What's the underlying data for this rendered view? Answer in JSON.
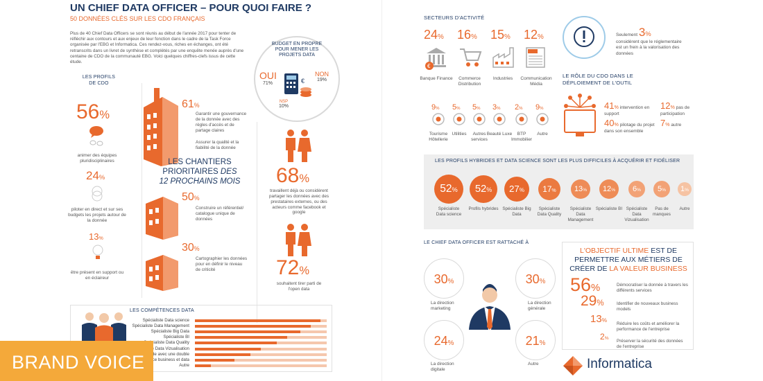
{
  "header": {
    "title": "UN CHIEF DATA OFFICER – POUR QUOI FAIRE ?",
    "subtitle": "50 DONNÉES CLÉS SUR LES CDO FRANÇAIS",
    "intro": "Plus de 40 Chief Data Officers se sont réunis au début de l'année 2017 pour tenter de réfléchir aux contours et aux enjeux de leur fonction dans le cadre de la Task Force organisée par l'EBG et Informatica. Ces rendez-vous, riches en échanges, ont été retranscrits dans un livret de synthèse et complétés par une enquête menée auprès d'une centaine de CDO de la communauté EBG. Voici quelques chiffres-clefs issus de cette étude."
  },
  "profils": {
    "heading": "LES PROFILS DE CDO",
    "items": [
      {
        "value": "56",
        "unit": "%",
        "label": "animer des équipes pluridisciplinaires"
      },
      {
        "value": "24",
        "unit": "%",
        "label": "piloter en direct et sur ses budgets les projets autour de la donnée"
      },
      {
        "value": "13",
        "unit": "%",
        "label": "être présent en support ou en éclaireur"
      }
    ]
  },
  "chantiers": {
    "heading_line1": "LES CHANTIERS",
    "heading_line2": "PRIORITAIRES",
    "heading_des": "DES",
    "heading_line3": "12 PROCHAINS MOIS",
    "items": [
      {
        "value": "61",
        "unit": "%",
        "label": "Garantir une gouvernance de la donnée avec des règles d'accès et de partage claires",
        "label2": "Assurer la qualité et la fiabilité de la donnée"
      },
      {
        "value": "50",
        "unit": "%",
        "label": "Construire un référentiel/ catalogue unique de données"
      },
      {
        "value": "30",
        "unit": "%",
        "label": "Cartographier les données pour en définir le niveau de criticité"
      }
    ]
  },
  "budget": {
    "title": "BUDGET EN PROPRE POUR MENER LES PROJETS DATA",
    "oui_label": "OUI",
    "oui_value": "71",
    "oui_unit": "%",
    "non_label": "NON",
    "non_value": "19",
    "non_unit": "%",
    "nsp_label": "NSP",
    "nsp_value": "10",
    "nsp_unit": "%"
  },
  "middle_stats": [
    {
      "value": "68",
      "unit": "%",
      "label": "travaillent déjà ou considèrent partager les données avec des prestataires externes, ou des acteurs comme facebook et google"
    },
    {
      "value": "72",
      "unit": "%",
      "label": "souhaitent tirer parti de l'open data"
    }
  ],
  "competences": {
    "heading": "LES COMPÉTENCES DATA",
    "items": [
      {
        "label": "Spécialiste Data science",
        "value": 0.95
      },
      {
        "label": "Spécialiste Data Management",
        "value": 0.88
      },
      {
        "label": "Spécialiste Big Data",
        "value": 0.8
      },
      {
        "label": "Spécialiste BI",
        "value": 0.7
      },
      {
        "label": "Spécialiste Data Quality",
        "value": 0.62
      },
      {
        "label": "Spécialiste Data Vizualisation",
        "value": 0.5
      },
      {
        "label": "Profil hybride avec une double",
        "value": 0.42
      },
      {
        "label": "compétence business et data",
        "value": 0.3
      },
      {
        "label": "Autre",
        "value": 0.12
      }
    ]
  },
  "brand_voice": "BRAND VOICE",
  "secteurs": {
    "heading": "SECTEURS D'ACTIVITÉ",
    "top": [
      {
        "value": "24",
        "unit": "%",
        "label": "Banque Finance",
        "icon": "bank-icon"
      },
      {
        "value": "16",
        "unit": "%",
        "label": "Commerce Distribution",
        "icon": "cart-icon"
      },
      {
        "value": "15",
        "unit": "%",
        "label": "Industries",
        "icon": "factory-icon"
      },
      {
        "value": "12",
        "unit": "%",
        "label": "Communication Média",
        "icon": "news-icon"
      }
    ],
    "bottom": [
      {
        "value": "9",
        "unit": "%",
        "label": "Tourisme Hôtellerie",
        "icon": "hotel-icon"
      },
      {
        "value": "5",
        "unit": "%",
        "label": "Utilities",
        "icon": "bulb-icon"
      },
      {
        "value": "5",
        "unit": "%",
        "label": "Autres services",
        "icon": "service-icon"
      },
      {
        "value": "3",
        "unit": "%",
        "label": "Beauté Luxe",
        "icon": "beauty-icon"
      },
      {
        "value": "2",
        "unit": "%",
        "label": "BTP Immobilier",
        "icon": "building-icon"
      },
      {
        "value": "9",
        "unit": "%",
        "label": "Autre",
        "icon": "dots-icon"
      }
    ]
  },
  "reglementaire": {
    "prefix": "Seulement",
    "value": "3",
    "unit": "%",
    "label": "considèrent que le réglementaire est un frein à la valorisation des données"
  },
  "role": {
    "heading": "LE RÔLE DU CDO DANS LE DÉPLOIEMENT DE L'OUTIL",
    "items": [
      {
        "value": "41",
        "unit": "%",
        "label": "intervention en support"
      },
      {
        "value": "12",
        "unit": "%",
        "label": "pas de participation"
      },
      {
        "value": "40",
        "unit": "%",
        "label": "pilotage du projet dans son ensemble"
      },
      {
        "value": "7",
        "unit": "%",
        "label": "autre"
      }
    ]
  },
  "profils_hybrides": {
    "heading": "LES PROFILS HYBRIDES ET DATA SCIENCE SONT LES PLUS DIFFICILES À ACQUÉRIR ET FIDÉLISER",
    "items": [
      {
        "value": "52",
        "unit": "%",
        "label": "Spécialiste Data science"
      },
      {
        "value": "52",
        "unit": "%",
        "label": "Profils hybrides"
      },
      {
        "value": "27",
        "unit": "%",
        "label": "Spécialiste Big Data"
      },
      {
        "value": "17",
        "unit": "%",
        "label": "Spécialiste Data Quality"
      },
      {
        "value": "13",
        "unit": "%",
        "label": "Spécialiste Data Management"
      },
      {
        "value": "12",
        "unit": "%",
        "label": "Spécialiste BI"
      },
      {
        "value": "6",
        "unit": "%",
        "label": "Spécialiste Data Vizualisation"
      },
      {
        "value": "5",
        "unit": "%",
        "label": "Pas de manques"
      },
      {
        "value": "1",
        "unit": "%",
        "label": "Autre"
      }
    ]
  },
  "rattache": {
    "heading": "LE CHIEF DATA OFFICER EST RATTACHÉ À",
    "items": [
      {
        "value": "30",
        "unit": "%",
        "label": "La direction marketing"
      },
      {
        "value": "30",
        "unit": "%",
        "label": "La direction générale"
      },
      {
        "value": "24",
        "unit": "%",
        "label": "La direction digitale"
      },
      {
        "value": "21",
        "unit": "%",
        "label": "Autre"
      }
    ]
  },
  "objectif": {
    "title_orange1": "L'OBJECTIF ULTIME",
    "title_navy1": "EST DE PERMETTRE AUX MÉTIERS DE CRÉER DE",
    "title_orange2": "LA VALEUR BUSINESS",
    "items": [
      {
        "value": "56",
        "unit": "%",
        "label": "Démocratiser la donnée à travers les différents services"
      },
      {
        "value": "29",
        "unit": "%",
        "label": "Identifier de nouveaux business models"
      },
      {
        "value": "13",
        "unit": "%",
        "label": "Réduire les coûts et améliorer la performance de l'entreprise"
      },
      {
        "value": "2",
        "unit": "%",
        "label": "Préserver la sécurité des données de l'entreprise"
      }
    ]
  },
  "logo": {
    "name": "Informatica"
  },
  "colors": {
    "orange": "#e8692d",
    "navy": "#1f3a63",
    "grey": "#eeeeee"
  }
}
